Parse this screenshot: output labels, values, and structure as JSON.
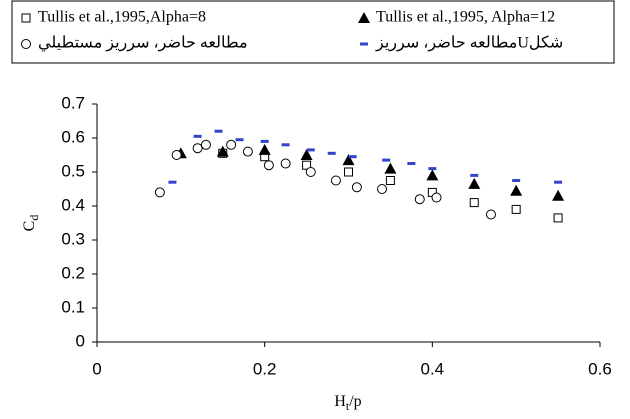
{
  "chart_data": {
    "type": "scatter",
    "xlabel": {
      "text": "H",
      "subscript": "t",
      "suffix": "/p"
    },
    "ylabel": {
      "text": "C",
      "subscript": "d"
    },
    "xlim": [
      0,
      0.6
    ],
    "xticks": [
      0,
      0.2,
      0.4,
      0.6
    ],
    "ylim": [
      0,
      0.7
    ],
    "yticks": [
      0,
      0.1,
      0.2,
      0.3,
      0.4,
      0.5,
      0.6,
      0.7
    ],
    "grid": false,
    "series": [
      {
        "name": "Tullis et al.,1995,Alpha=8",
        "marker": "square",
        "color": "#000000",
        "x": [
          0.15,
          0.2,
          0.25,
          0.3,
          0.35,
          0.4,
          0.45,
          0.5,
          0.55
        ],
        "values": [
          0.555,
          0.545,
          0.52,
          0.5,
          0.475,
          0.44,
          0.41,
          0.39,
          0.365
        ]
      },
      {
        "name": "Tullis et al.,1995, Alpha=12",
        "marker": "triangle",
        "color": "#000000",
        "x": [
          0.1,
          0.15,
          0.2,
          0.25,
          0.3,
          0.35,
          0.4,
          0.45,
          0.5,
          0.55
        ],
        "values": [
          0.555,
          0.56,
          0.565,
          0.55,
          0.535,
          0.51,
          0.49,
          0.465,
          0.445,
          0.43
        ]
      },
      {
        "name": "مطالعه حاضر، سرريز مستطيلي",
        "marker": "circle",
        "color": "#000000",
        "x": [
          0.075,
          0.095,
          0.12,
          0.13,
          0.16,
          0.18,
          0.205,
          0.225,
          0.255,
          0.285,
          0.31,
          0.34,
          0.385,
          0.405,
          0.47
        ],
        "values": [
          0.44,
          0.55,
          0.57,
          0.58,
          0.58,
          0.56,
          0.52,
          0.525,
          0.5,
          0.475,
          0.455,
          0.45,
          0.42,
          0.425,
          0.375
        ]
      },
      {
        "name": "مطالعه حاضر، سرريزUشكل",
        "marker": "dash",
        "color": "#3344cc",
        "x": [
          0.09,
          0.12,
          0.145,
          0.17,
          0.2,
          0.225,
          0.255,
          0.28,
          0.305,
          0.345,
          0.375,
          0.4,
          0.45,
          0.5,
          0.55
        ],
        "values": [
          0.47,
          0.605,
          0.62,
          0.595,
          0.59,
          0.58,
          0.565,
          0.555,
          0.545,
          0.535,
          0.525,
          0.51,
          0.49,
          0.475,
          0.47
        ]
      }
    ]
  }
}
